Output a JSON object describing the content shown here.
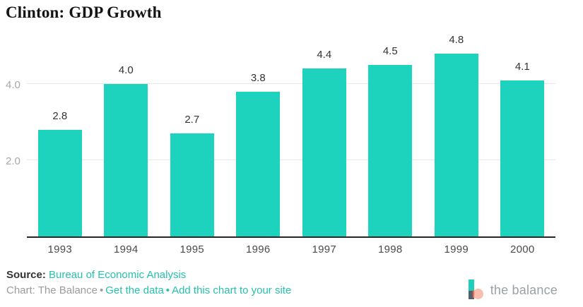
{
  "title": "Clinton: GDP Growth",
  "chart_data": {
    "type": "bar",
    "title": "Clinton: GDP Growth",
    "categories": [
      "1993",
      "1994",
      "1995",
      "1996",
      "1997",
      "1998",
      "1999",
      "2000"
    ],
    "values": [
      2.8,
      4.0,
      2.7,
      3.8,
      4.4,
      4.5,
      4.8,
      4.1
    ],
    "value_labels": [
      "2.8",
      "4.0",
      "2.7",
      "3.8",
      "4.4",
      "4.5",
      "4.8",
      "4.1"
    ],
    "xlabel": "",
    "ylabel": "",
    "ylim": [
      0,
      5.2
    ],
    "yticks": [
      "2.0",
      "4.0"
    ],
    "grid": true,
    "legend": false,
    "bar_color": "#1ed3bd"
  },
  "footer": {
    "source_label": "Source:",
    "source_link": "Bureau of Economic Analysis",
    "credit_text": "Chart: The Balance",
    "separator": "•",
    "link_get_data": "Get the data",
    "link_embed": "Add this chart to your site"
  },
  "logo": {
    "text": "the balance"
  },
  "colors": {
    "bar": "#1ed3bd",
    "link": "#28c0ae",
    "axis": "#262626",
    "gridline": "#e8e8e8",
    "ytick_text": "#a8a8a8",
    "xtick_text": "#4a4a4a",
    "credit_text": "#9c9c9c",
    "logo_text": "#9aa0a4"
  }
}
